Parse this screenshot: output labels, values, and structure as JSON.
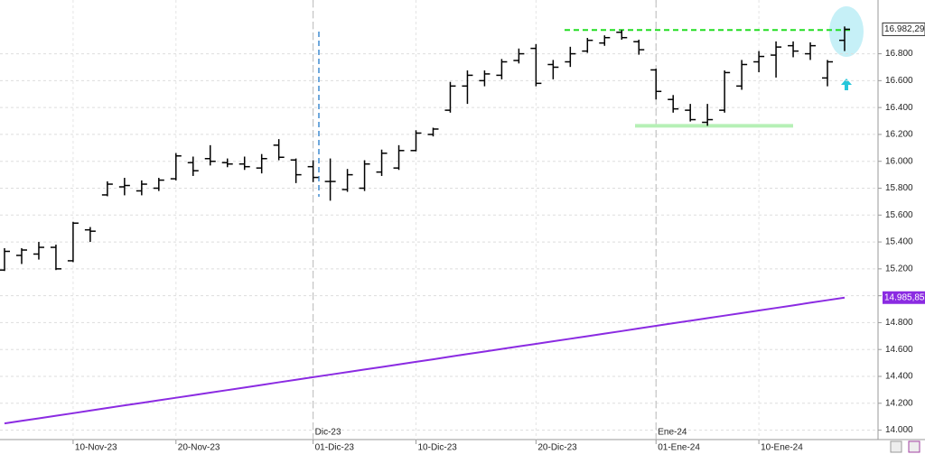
{
  "chart_data": {
    "type": "ohlc",
    "categories": [
      null,
      null,
      null,
      null,
      "10-Nov-23",
      null,
      null,
      null,
      null,
      null,
      "20-Nov-23",
      null,
      null,
      null,
      null,
      null,
      null,
      null,
      "01-Dic-23",
      null,
      null,
      null,
      null,
      null,
      "10-Dic-23",
      null,
      null,
      null,
      null,
      null,
      null,
      "20-Dic-23",
      null,
      null,
      null,
      null,
      null,
      null,
      "01-Ene-24",
      null,
      null,
      null,
      null,
      null,
      "10-Ene-24",
      null,
      null,
      null,
      null,
      null
    ],
    "month_categories": [
      null,
      null,
      null,
      null,
      null,
      null,
      null,
      null,
      null,
      null,
      null,
      null,
      null,
      null,
      null,
      null,
      null,
      null,
      "Dic-23",
      null,
      null,
      null,
      null,
      null,
      null,
      null,
      null,
      null,
      null,
      null,
      null,
      null,
      null,
      null,
      null,
      null,
      null,
      null,
      "Ene-24",
      null,
      null,
      null,
      null,
      null,
      null,
      null,
      null,
      null,
      null,
      null
    ],
    "open": [
      15191,
      15300,
      15310,
      15360,
      15260,
      15490,
      15750,
      15810,
      15780,
      15800,
      15870,
      15990,
      16020,
      15990,
      15980,
      15950,
      16120,
      16010,
      15960,
      15850,
      15790,
      15800,
      15920,
      15950,
      16080,
      16200,
      16380,
      16560,
      16600,
      16640,
      16750,
      16840,
      16720,
      16740,
      16820,
      16880,
      16960,
      16890,
      16680,
      16460,
      16380,
      16290,
      16380,
      16560,
      16740,
      16790,
      16860,
      16800,
      16620,
      16900
    ],
    "high": [
      15354,
      15354,
      15400,
      15380,
      15550,
      15511,
      15851,
      15877,
      15858,
      15877,
      16061,
      16035,
      16120,
      16021,
      16035,
      16054,
      16165,
      16021,
      16008,
      16021,
      15943,
      16008,
      16087,
      16120,
      16231,
      16250,
      16591,
      16676,
      16676,
      16761,
      16839,
      16872,
      16754,
      16852,
      16918,
      16937,
      16977,
      16905,
      16689,
      16493,
      16427,
      16427,
      16676,
      16754,
      16820,
      16892,
      16892,
      16885,
      16754,
      17003
    ],
    "low": [
      15184,
      15236,
      15269,
      15191,
      15250,
      15400,
      15740,
      15747,
      15747,
      15779,
      15858,
      15891,
      15969,
      15956,
      15936,
      15910,
      16008,
      15838,
      15845,
      15707,
      15773,
      15779,
      15891,
      15936,
      16074,
      16185,
      16362,
      16427,
      16558,
      16610,
      16728,
      16558,
      16610,
      16702,
      16807,
      16859,
      16905,
      16793,
      16460,
      16362,
      16296,
      16264,
      16362,
      16532,
      16663,
      16623,
      16774,
      16754,
      16558,
      16820
    ],
    "close": [
      15330,
      15340,
      15360,
      15200,
      15540,
      15480,
      15830,
      15820,
      15830,
      15860,
      16040,
      15930,
      16000,
      15980,
      15960,
      16020,
      16030,
      15900,
      15880,
      15850,
      15900,
      15980,
      16060,
      16080,
      16210,
      16240,
      16560,
      16640,
      16650,
      16740,
      16800,
      16580,
      16700,
      16800,
      16900,
      16920,
      16920,
      16830,
      16520,
      16390,
      16310,
      16310,
      16660,
      16720,
      16780,
      16850,
      16820,
      16860,
      16740,
      16982.29
    ],
    "color": "#000000",
    "moving_average": {
      "color": "#8b2be2",
      "values": [
        14050,
        14069,
        14088,
        14107,
        14126,
        14146,
        14165,
        14184,
        14203,
        14222,
        14241,
        14260,
        14279,
        14298,
        14317,
        14336,
        14356,
        14375,
        14394,
        14413,
        14432,
        14451,
        14470,
        14489,
        14508,
        14527,
        14547,
        14566,
        14585,
        14604,
        14623,
        14642,
        14661,
        14680,
        14699,
        14718,
        14737,
        14757,
        14776,
        14795,
        14814,
        14833,
        14852,
        14871,
        14890,
        14909,
        14928,
        14948,
        14967,
        14986
      ]
    },
    "last_price": {
      "value": 16982.29,
      "label": "16.982,29"
    },
    "ma_price": {
      "value": 14985.85,
      "label": "14.985,85"
    },
    "resistance": 16977,
    "support": 16264,
    "ylim": [
      13930,
      17200
    ],
    "yticks": [
      {
        "value": 14000,
        "label": "14.000"
      },
      {
        "value": 14200,
        "label": "14.200"
      },
      {
        "value": 14400,
        "label": "14.400"
      },
      {
        "value": 14600,
        "label": "14.600"
      },
      {
        "value": 14800,
        "label": "14.800"
      },
      {
        "value": 15000,
        "label": "15.000"
      },
      {
        "value": 15200,
        "label": "15.200"
      },
      {
        "value": 15400,
        "label": "15.400"
      },
      {
        "value": 15600,
        "label": "15.600"
      },
      {
        "value": 15800,
        "label": "15.800"
      },
      {
        "value": 16000,
        "label": "16.000"
      },
      {
        "value": 16200,
        "label": "16.200"
      },
      {
        "value": 16400,
        "label": "16.400"
      },
      {
        "value": 16600,
        "label": "16.600"
      },
      {
        "value": 16800,
        "label": "16.800"
      }
    ],
    "grid": true
  }
}
